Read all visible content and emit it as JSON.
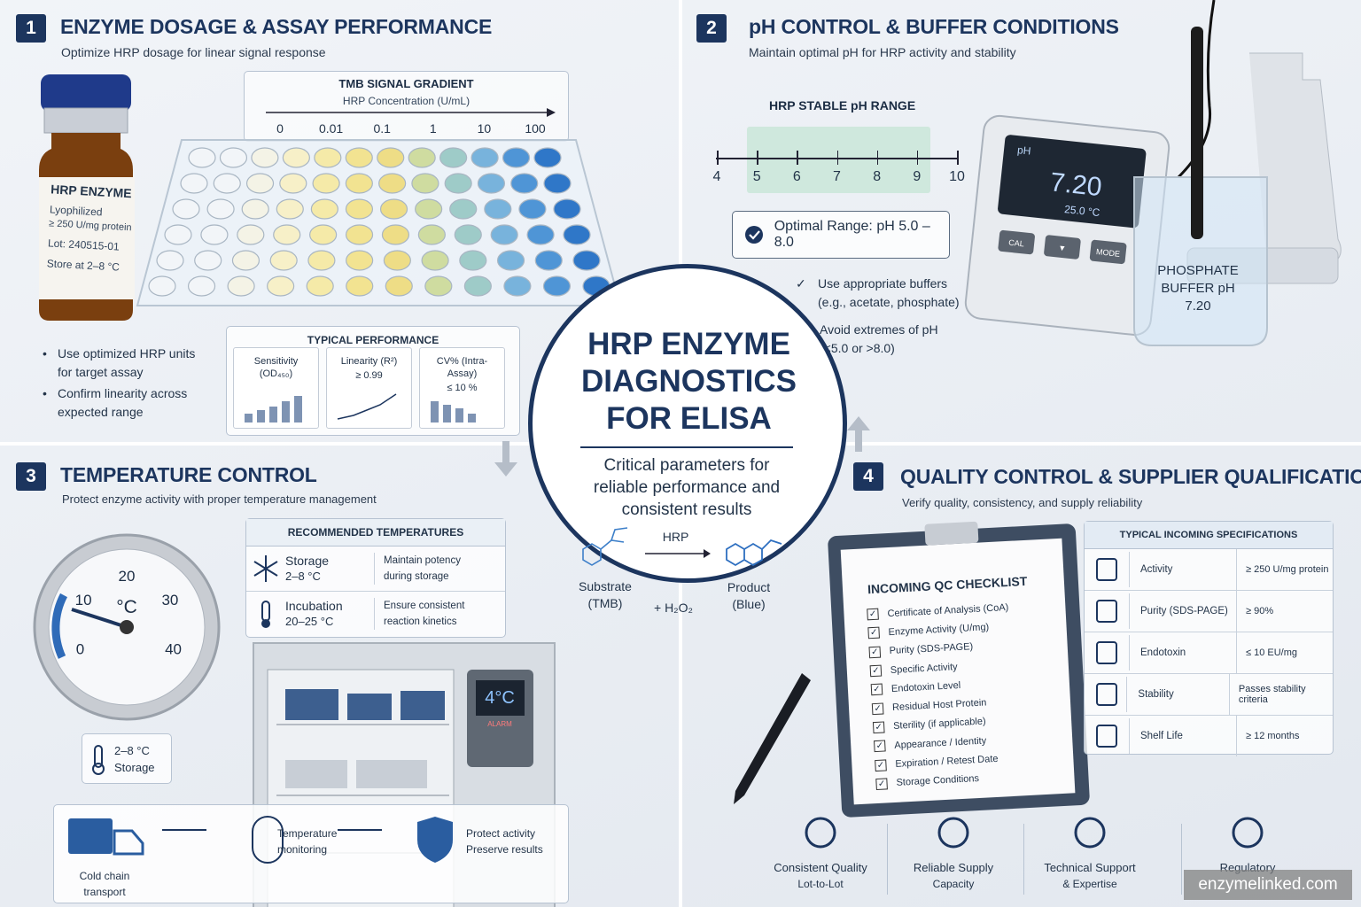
{
  "dosage": {
    "number": "1",
    "title": "ENZYME DOSAGE & ASSAY PERFORMANCE",
    "subtitle": "Optimize HRP dosage for linear signal response",
    "vial": {
      "name": "HRP ENZYME",
      "form": "Lyophilized",
      "activity": "≥ 250 U/mg protein",
      "lot": "Lot:  240515-01",
      "storage": "Store at 2–8 °C"
    },
    "gradient": {
      "title": "TMB SIGNAL GRADIENT",
      "axis": "HRP Concentration (U/mL)",
      "ticks": [
        "0",
        "0.01",
        "0.1",
        "1",
        "10",
        "100"
      ]
    },
    "bullets": [
      "Use optimized HRP units for target assay",
      "Confirm linearity across expected range"
    ],
    "performance": {
      "title": "TYPICAL PERFORMANCE",
      "metrics": [
        {
          "label": "Sensitivity (OD₄₅₀)"
        },
        {
          "label": "Linearity (R²)",
          "value": "≥ 0.99"
        },
        {
          "label": "CV% (Intra-Assay)",
          "value": "≤ 10 %"
        }
      ]
    }
  },
  "ph": {
    "number": "2",
    "title": "pH CONTROL & BUFFER CONDITIONS",
    "subtitle": "Maintain optimal pH for HRP activity and stability",
    "range": {
      "title": "HRP STABLE pH RANGE",
      "ticks": [
        4,
        5,
        6,
        7,
        8,
        9,
        10
      ]
    },
    "optimal": "Optimal Range: pH 5.0 – 8.0",
    "notes": [
      "Use appropriate buffers (e.g., acetate, phosphate)",
      "Avoid extremes of pH (<5.0 or >8.0)"
    ],
    "meter": {
      "unit": "pH",
      "reading": "7.20",
      "temperature": "25.0 °C",
      "buttons": [
        "CAL",
        "▼",
        "MODE"
      ]
    },
    "beaker": "PHOSPHATE BUFFER pH 7.20"
  },
  "center": {
    "title": "HRP ENZYME DIAGNOSTICS FOR ELISA",
    "subtitle": "Critical parameters for reliable performance and consistent results",
    "reaction": {
      "substrate": "Substrate (TMB)",
      "enzyme": "HRP",
      "cosubstrate": "+ H₂O₂",
      "product": "Product (Blue)"
    }
  },
  "temperature": {
    "number": "3",
    "title": "TEMPERATURE CONTROL",
    "subtitle": "Protect enzyme activity with proper temperature management",
    "gauge": {
      "ticks": [
        "0",
        "10",
        "20",
        "30",
        "40"
      ],
      "unit": "°C"
    },
    "badge": {
      "range": "2–8 °C",
      "label": "Storage"
    },
    "table": {
      "title": "RECOMMENDED TEMPERATURES",
      "rows": [
        {
          "name": "Storage",
          "range": "2–8 °C",
          "note": "Maintain potency during storage"
        },
        {
          "name": "Incubation",
          "range": "20–25 °C",
          "note": "Ensure consistent reaction kinetics"
        }
      ]
    },
    "fridge": {
      "display": "4°C",
      "alarm": "ALARM"
    },
    "flow": [
      {
        "text": "Cold chain transport"
      },
      {
        "text": "Temperature monitoring"
      },
      {
        "text": "Protect activity",
        "subtext": "Preserve results"
      }
    ]
  },
  "quality": {
    "number": "4",
    "title": "QUALITY CONTROL & SUPPLIER QUALIFICATION",
    "subtitle": "Verify quality, consistency, and supply reliability",
    "checklist": {
      "title": "INCOMING QC CHECKLIST",
      "items": [
        "Certificate of Analysis (CoA)",
        "Enzyme Activity (U/mg)",
        "Purity (SDS-PAGE)",
        "Specific Activity",
        "Endotoxin Level",
        "Residual Host Protein",
        "Sterility (if applicable)",
        "Appearance / Identity",
        "Expiration / Retest Date",
        "Storage Conditions"
      ]
    },
    "specs": {
      "title": "TYPICAL INCOMING SPECIFICATIONS",
      "rows": [
        {
          "name": "Activity",
          "value": "≥ 250 U/mg protein"
        },
        {
          "name": "Purity (SDS-PAGE)",
          "value": "≥ 90%"
        },
        {
          "name": "Endotoxin",
          "value": "≤ 10 EU/mg"
        },
        {
          "name": "Stability",
          "value": "Passes stability criteria"
        },
        {
          "name": "Shelf Life",
          "value": "≥ 12 months"
        }
      ]
    },
    "pillars": [
      {
        "title": "Consistent Quality",
        "subtitle": "Lot-to-Lot"
      },
      {
        "title": "Reliable Supply",
        "subtitle": "Capacity"
      },
      {
        "title": "Technical Support",
        "subtitle": "& Expertise"
      },
      {
        "title": "Regulatory"
      }
    ]
  },
  "watermark": "enzymelinked.com"
}
